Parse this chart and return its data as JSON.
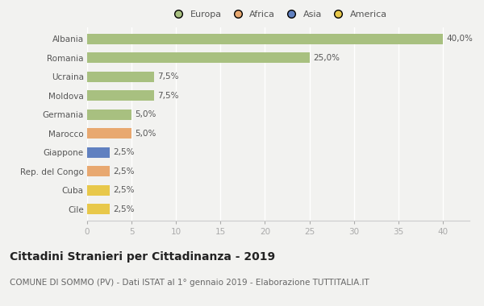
{
  "countries": [
    "Albania",
    "Romania",
    "Ucraina",
    "Moldova",
    "Germania",
    "Marocco",
    "Giappone",
    "Rep. del Congo",
    "Cuba",
    "Cile"
  ],
  "values": [
    40.0,
    25.0,
    7.5,
    7.5,
    5.0,
    5.0,
    2.5,
    2.5,
    2.5,
    2.5
  ],
  "labels": [
    "40,0%",
    "25,0%",
    "7,5%",
    "7,5%",
    "5,0%",
    "5,0%",
    "2,5%",
    "2,5%",
    "2,5%",
    "2,5%"
  ],
  "colors": [
    "#a8c080",
    "#a8c080",
    "#a8c080",
    "#a8c080",
    "#a8c080",
    "#e8a870",
    "#6080c0",
    "#e8a870",
    "#e8c84a",
    "#e8c84a"
  ],
  "legend_labels": [
    "Europa",
    "Africa",
    "Asia",
    "America"
  ],
  "legend_colors": [
    "#a8c080",
    "#e8a870",
    "#6080c0",
    "#e8c84a"
  ],
  "title": "Cittadini Stranieri per Cittadinanza - 2019",
  "subtitle": "COMUNE DI SOMMO (PV) - Dati ISTAT al 1° gennaio 2019 - Elaborazione TUTTITALIA.IT",
  "xlim": [
    0,
    43
  ],
  "xticks": [
    0,
    5,
    10,
    15,
    20,
    25,
    30,
    35,
    40
  ],
  "background_color": "#f2f2f0",
  "grid_color": "#ffffff",
  "bar_height": 0.55,
  "title_fontsize": 10,
  "subtitle_fontsize": 7.5,
  "label_fontsize": 7.5,
  "tick_fontsize": 7.5,
  "legend_fontsize": 8
}
